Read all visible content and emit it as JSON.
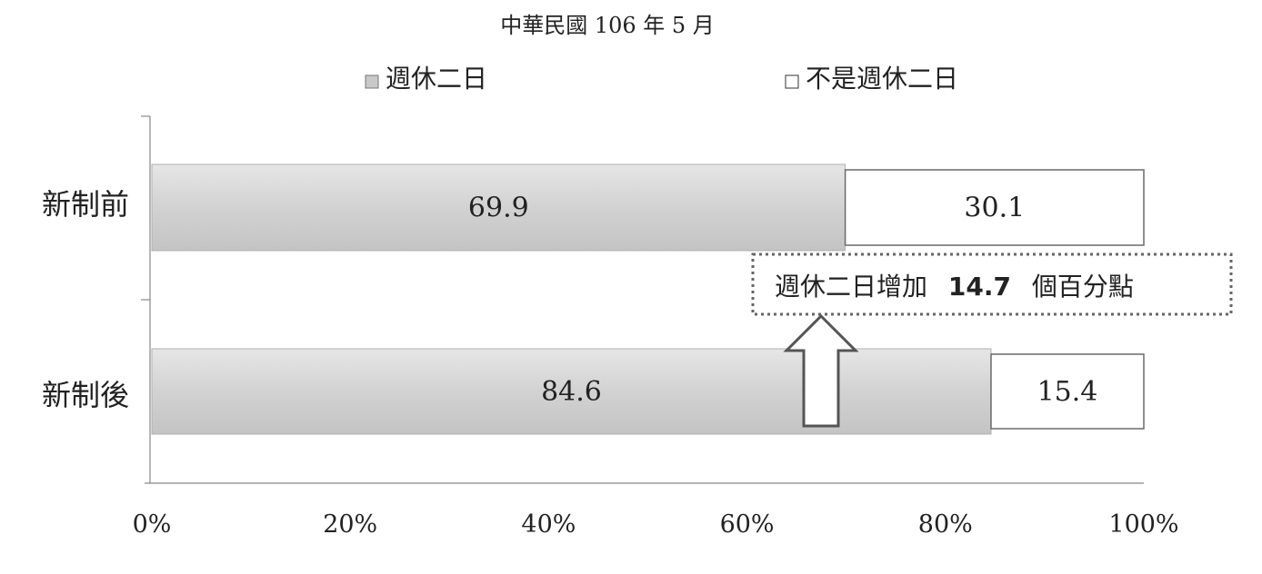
{
  "chart_data": {
    "type": "bar",
    "orientation": "horizontal",
    "stacked": true,
    "title": "中華民國 106 年 5 月",
    "categories": [
      "新制前",
      "新制後"
    ],
    "series": [
      {
        "name": "週休二日",
        "values": [
          69.9,
          84.6
        ],
        "color": "#d6d6d6"
      },
      {
        "name": "不是週休二日",
        "values": [
          30.1,
          15.4
        ],
        "color": "#ffffff"
      }
    ],
    "xlim": [
      0,
      100
    ],
    "xticks": [
      "0%",
      "20%",
      "40%",
      "60%",
      "80%",
      "100%"
    ],
    "grid": false,
    "legend_position": "top",
    "annotation": {
      "text_prefix": "週休二日增加",
      "value": "14.7",
      "text_suffix": "個百分點"
    }
  }
}
